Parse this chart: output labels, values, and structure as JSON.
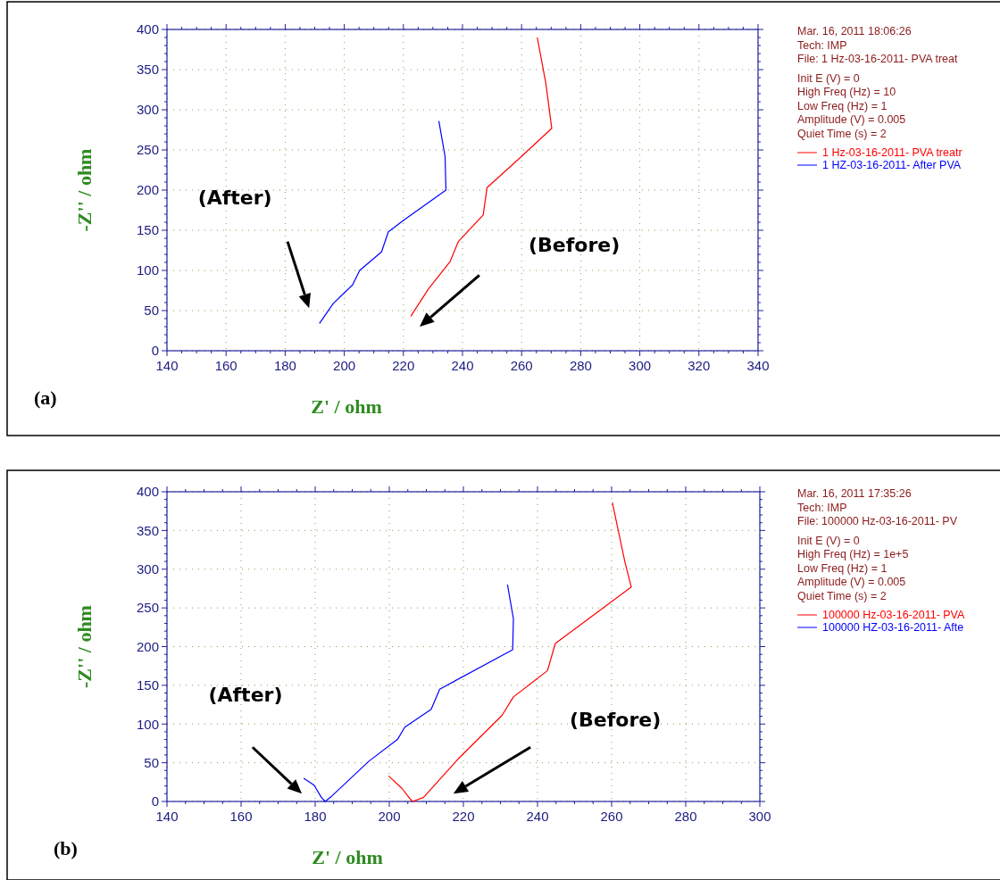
{
  "chart_data": [
    {
      "type": "line",
      "xlabel": "Z' / ohm",
      "ylabel": "-Z'' / ohm",
      "xlim": [
        140,
        340
      ],
      "xticks": [
        140,
        160,
        180,
        200,
        220,
        240,
        260,
        280,
        300,
        320,
        340
      ],
      "ylim": [
        0,
        400
      ],
      "yticks": [
        0,
        50,
        100,
        150,
        200,
        250,
        300,
        350,
        400
      ],
      "grid": true,
      "legend": "right",
      "marker": "none",
      "line_style": "solid",
      "series": [
        {
          "name": "1 Hz-03-16-2011- PVA treatr",
          "color": "#ff0000",
          "x": [
            222.5,
            228.5,
            235.8,
            238.6,
            247.0,
            248.3,
            259.4,
            270.2,
            268.2,
            265.3
          ],
          "values": [
            43,
            77,
            111,
            136,
            169,
            203,
            240,
            277,
            333,
            390
          ]
        },
        {
          "name": "1  HZ-03-16-2011- After PVA",
          "color": "#0000ff",
          "x": [
            191.6,
            196.3,
            202.8,
            205.2,
            212.6,
            214.9,
            220.3,
            234.4,
            234.1,
            232.0
          ],
          "values": [
            34,
            59,
            82,
            100,
            123,
            148,
            163,
            200,
            242,
            286
          ]
        }
      ],
      "annotations": [
        "(a)",
        "Mar. 16, 2011    18:06:26",
        "Tech: IMP",
        "File: 1 Hz-03-16-2011- PVA treat",
        "Init E (V) = 0",
        "High Freq (Hz) = 10",
        "Low Freq (Hz) = 1",
        "Amplitude (V) = 0.005",
        "Quiet Time (s) = 2",
        "(After)",
        "(Before)"
      ]
    },
    {
      "type": "line",
      "xlabel": "Z' / ohm",
      "ylabel": "-Z'' / ohm",
      "xlim": [
        140,
        300
      ],
      "xticks": [
        140,
        160,
        180,
        200,
        220,
        240,
        260,
        280,
        300
      ],
      "ylim": [
        0,
        400
      ],
      "yticks": [
        0,
        50,
        100,
        150,
        200,
        250,
        300,
        350,
        400
      ],
      "grid": true,
      "legend": "right",
      "marker": "none",
      "line_style": "solid",
      "series": [
        {
          "name": "100000 Hz-03-16-2011- PVA",
          "color": "#ff0000",
          "x": [
            199.8,
            203.4,
            205.0,
            206.2,
            209.2,
            218.6,
            230.4,
            233.5,
            242.7,
            244.8,
            265.3,
            263.6,
            260.2
          ],
          "values": [
            33,
            17,
            7,
            0,
            5,
            55,
            111,
            135,
            169,
            204,
            277,
            309,
            386
          ]
        },
        {
          "name": "100000 HZ-03-16-2011- Afte",
          "color": "#0000ff",
          "x": [
            176.9,
            179.7,
            181.7,
            182.7,
            184.5,
            194.5,
            202.2,
            204.2,
            211.3,
            213.6,
            233.3,
            233.5,
            231.9
          ],
          "values": [
            30,
            21,
            5,
            0,
            7,
            52,
            80,
            96,
            119,
            145,
            196,
            236,
            280
          ]
        }
      ],
      "annotations": [
        "(b)",
        "Mar. 16, 2011    17:35:26",
        "Tech: IMP",
        "File: 100000 Hz-03-16-2011- PV",
        "Init E (V) = 0",
        "High Freq (Hz) = 1e+5",
        "Low Freq (Hz) = 1",
        "Amplitude (V) = 0.005",
        "Quiet Time (s) = 2",
        "(After)",
        "(Before)"
      ]
    }
  ]
}
